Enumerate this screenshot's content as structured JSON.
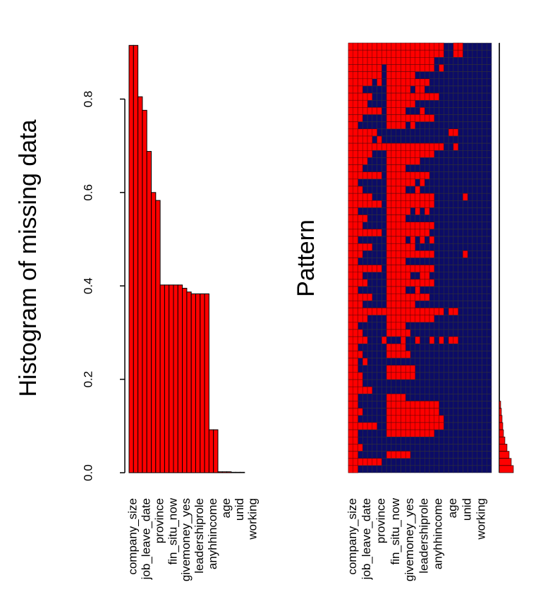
{
  "chart_data": [
    {
      "type": "bar",
      "ylabel": "Histogram of missing data",
      "categories": [
        "company_size",
        null,
        null,
        "job_leave_date",
        null,
        null,
        "province",
        null,
        null,
        "fin_situ_now",
        null,
        null,
        "givemoney_yes",
        null,
        null,
        "leadershiprole",
        null,
        null,
        "anyhhincome",
        null,
        null,
        "age",
        null,
        null,
        "unid",
        null,
        null,
        "working",
        null,
        null
      ],
      "values": [
        0.915,
        0.915,
        0.805,
        0.776,
        0.688,
        0.6,
        0.583,
        0.402,
        0.402,
        0.402,
        0.402,
        0.402,
        0.395,
        0.387,
        0.383,
        0.383,
        0.383,
        0.383,
        0.092,
        0.092,
        0.002,
        0.002,
        0.002,
        0.001,
        0.001,
        0.001,
        0,
        0,
        0,
        0
      ],
      "color": "#ff0000",
      "ylim": [
        0,
        0.92
      ],
      "yticks": [
        {
          "value": 0,
          "label": "0.0"
        },
        0.2,
        0.4,
        0.6,
        0.8
      ]
    },
    {
      "type": "pattern",
      "ylabel": "Pattern",
      "categories": [
        "company_size",
        null,
        null,
        "job_leave_date",
        null,
        null,
        "province",
        null,
        null,
        "fin_situ_now",
        null,
        null,
        "givemoney_yes",
        null,
        null,
        "leadershiprole",
        null,
        null,
        "anyhhincome",
        null,
        null,
        "age",
        null,
        null,
        "unid",
        null,
        null,
        "working",
        null,
        null
      ],
      "missing_color": "#ff0000",
      "observed_color": "#0c0c66",
      "rows": [
        [
          0,
          1,
          2,
          3,
          4,
          5,
          6,
          7,
          8,
          9,
          10,
          11,
          12,
          13,
          14,
          15,
          16,
          17,
          18,
          19,
          22,
          23
        ],
        [
          0,
          1,
          2,
          3,
          4,
          5,
          6,
          7,
          8,
          9,
          10,
          11,
          12,
          13,
          14,
          15,
          16,
          17,
          18,
          19,
          22,
          23
        ],
        [
          0,
          1,
          2,
          3,
          4,
          5,
          6,
          7,
          8,
          9,
          10,
          11,
          12,
          13,
          14,
          15,
          16,
          17
        ],
        [
          0,
          1,
          2,
          3,
          4,
          5,
          6,
          8,
          9,
          10,
          11,
          12,
          13,
          14,
          15,
          16,
          17,
          19
        ],
        [
          0,
          1,
          2,
          3,
          4,
          5,
          6,
          8,
          9,
          10,
          11,
          12,
          13
        ],
        [
          0,
          1,
          2,
          3,
          4,
          6,
          8,
          9,
          10,
          11,
          12,
          13,
          14,
          15,
          16
        ],
        [
          0,
          1,
          2,
          8,
          9,
          10,
          11,
          12,
          14,
          15
        ],
        [
          0,
          1,
          2,
          3,
          4,
          8,
          9,
          10,
          11,
          12,
          13,
          14,
          15,
          16,
          17,
          18
        ],
        [
          0,
          1,
          2,
          3,
          8,
          9,
          10,
          11,
          12,
          13
        ],
        [
          0,
          1,
          2,
          3,
          4,
          5,
          6,
          8,
          9,
          10,
          11,
          15
        ],
        [
          0,
          1,
          2,
          8,
          9,
          10,
          11,
          12,
          13,
          14,
          15,
          16,
          17
        ],
        [
          0,
          1,
          8,
          9,
          10,
          11,
          13
        ],
        [
          0,
          1,
          2,
          3,
          4,
          5,
          21,
          22
        ],
        [
          0,
          1,
          2,
          3,
          4,
          6
        ],
        [
          0,
          1,
          2,
          3,
          4,
          5,
          6,
          7,
          8,
          9,
          10,
          11,
          12,
          13,
          14,
          15,
          16,
          17,
          18,
          19,
          22
        ],
        [
          0,
          1,
          2,
          3,
          4,
          8,
          9,
          10,
          11,
          12,
          13,
          14,
          15,
          16,
          17
        ],
        [
          0,
          1,
          2,
          3,
          8,
          9,
          10,
          11,
          12,
          13,
          14
        ],
        [
          0,
          1,
          2,
          8,
          9,
          10,
          11
        ],
        [
          0,
          1,
          2,
          3,
          4,
          5,
          6,
          8,
          9,
          10,
          11,
          12,
          13,
          14,
          15,
          16
        ],
        [
          0,
          1,
          8,
          9,
          10,
          11,
          12,
          13,
          15
        ],
        [
          0,
          1,
          2,
          8,
          9,
          10,
          11,
          14
        ],
        [
          0,
          1,
          2,
          3,
          4,
          8,
          9,
          10,
          11,
          12,
          13,
          14,
          15,
          16,
          17,
          24
        ],
        [
          0,
          1,
          2,
          3,
          4,
          5,
          6,
          8,
          9,
          10,
          11,
          12,
          13,
          14,
          15,
          16,
          17
        ],
        [
          0,
          1,
          8,
          9,
          10,
          11,
          12,
          14,
          16
        ],
        [
          0,
          1,
          2,
          3,
          8,
          9,
          10,
          11
        ],
        [
          0,
          1,
          2,
          8,
          9,
          10,
          11,
          12,
          13,
          14,
          15,
          16,
          17
        ],
        [
          0,
          1,
          2,
          3,
          4,
          5,
          6,
          8,
          9,
          10,
          11,
          12,
          13,
          14,
          15,
          16
        ],
        [
          0,
          1,
          8,
          9,
          10,
          11,
          13,
          15,
          17
        ],
        [
          0,
          1,
          2,
          3,
          4,
          8,
          9,
          10,
          11,
          12,
          13
        ],
        [
          0,
          1,
          2,
          8,
          9,
          10,
          11,
          12,
          13,
          14,
          15,
          16,
          17,
          24
        ],
        [
          0,
          1,
          8,
          9,
          10,
          11
        ],
        [
          0,
          1,
          2,
          3,
          4,
          5,
          6,
          8,
          9,
          10,
          11,
          12,
          13,
          14,
          15,
          16,
          17
        ],
        [
          0,
          1,
          2,
          8,
          9,
          10,
          11,
          12,
          15,
          16
        ],
        [
          0,
          1,
          2,
          3,
          8,
          9,
          10,
          11,
          12,
          13,
          14,
          15,
          16,
          17
        ],
        [
          0,
          1,
          8,
          9,
          10,
          11,
          14
        ],
        [
          0,
          1,
          2,
          3,
          4,
          8,
          9,
          10,
          11,
          12,
          13,
          14,
          15,
          16
        ],
        [
          0,
          1,
          2,
          8,
          9,
          10,
          11,
          12,
          13
        ],
        [
          0,
          1,
          2,
          3,
          4,
          5,
          6,
          7,
          8,
          9,
          10,
          11,
          12,
          13,
          14,
          15,
          16,
          17,
          18,
          19,
          21,
          22
        ],
        [
          0,
          1,
          2,
          3,
          8,
          9,
          10,
          11,
          12,
          13,
          14,
          15,
          16,
          17
        ],
        [
          0,
          1,
          8,
          9,
          10,
          11
        ],
        [
          0,
          1,
          2,
          8,
          9,
          10,
          11,
          12
        ],
        [
          0,
          1,
          2,
          3,
          7,
          11,
          14,
          17,
          19,
          21,
          22
        ],
        [
          0,
          1,
          8,
          9,
          10,
          11
        ],
        [
          0,
          1,
          2,
          8,
          9,
          10,
          11,
          12
        ],
        [
          0,
          1,
          3
        ],
        [
          0,
          1,
          8,
          9,
          10,
          11,
          12,
          13
        ],
        [
          0,
          1,
          2,
          8,
          9,
          10,
          11,
          12,
          13
        ],
        [
          0,
          1,
          2
        ],
        [
          0,
          1,
          2,
          3,
          4
        ],
        [
          0,
          1,
          8,
          9,
          10,
          11
        ],
        [
          0,
          1,
          8,
          9,
          10,
          11,
          12,
          13,
          14,
          15,
          16,
          17,
          18
        ],
        [
          0,
          1,
          2,
          8,
          9,
          10,
          11,
          12,
          13,
          14,
          15,
          16,
          17,
          18
        ],
        [
          0,
          1,
          8,
          9,
          10,
          11,
          12,
          13,
          14,
          15,
          16,
          17,
          18,
          19
        ],
        [
          0,
          1,
          2,
          3,
          4,
          5,
          8,
          9,
          10,
          11,
          12,
          13,
          14,
          15,
          16,
          17,
          18,
          19
        ],
        [
          0,
          1,
          8,
          9,
          10,
          11,
          12,
          13,
          14,
          15,
          16,
          17
        ],
        [
          0,
          1
        ],
        [
          0,
          1,
          2
        ],
        [
          0,
          1,
          8,
          9,
          10,
          11,
          12
        ],
        [
          0,
          1,
          2,
          3,
          4,
          5,
          6
        ],
        [
          0,
          1
        ]
      ],
      "proportions": [
        0.001,
        0.001,
        0.001,
        0.001,
        0.001,
        0.001,
        0.001,
        0.001,
        0.001,
        0.001,
        0.001,
        0.001,
        0.001,
        0.001,
        0.001,
        0.001,
        0.001,
        0.001,
        0.001,
        0.001,
        0.001,
        0.001,
        0.001,
        0.001,
        0.001,
        0.001,
        0.001,
        0.001,
        0.001,
        0.001,
        0.001,
        0.001,
        0.001,
        0.001,
        0.001,
        0.001,
        0.001,
        0.001,
        0.001,
        0.001,
        0.001,
        0.001,
        0.001,
        0.001,
        0.001,
        0.001,
        0.001,
        0.001,
        0.001,
        0.001,
        0.004,
        0.006,
        0.008,
        0.01,
        0.012,
        0.016,
        0.022,
        0.028,
        0.034,
        0.04
      ]
    }
  ]
}
